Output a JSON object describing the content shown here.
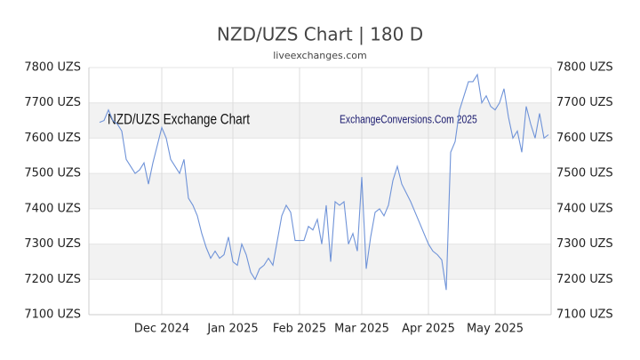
{
  "chart_data": {
    "type": "line",
    "title": "NZD/UZS Chart | 180 D",
    "subtitle": "liveexchanges.com",
    "annotations": [
      "NZD/UZS Exchange Chart",
      "ExchangeConversions.Com 2025"
    ],
    "categories": [
      null,
      null,
      null,
      null,
      null,
      null,
      null,
      null,
      null,
      null,
      null,
      null,
      null,
      null,
      "Dec 2024",
      null,
      null,
      null,
      null,
      null,
      null,
      null,
      null,
      null,
      null,
      null,
      null,
      null,
      null,
      null,
      "Jan 2025",
      null,
      null,
      null,
      null,
      null,
      null,
      null,
      null,
      null,
      null,
      null,
      null,
      null,
      null,
      "Feb 2025",
      null,
      null,
      null,
      null,
      null,
      null,
      null,
      null,
      null,
      null,
      null,
      null,
      null,
      "Mar 2025",
      null,
      null,
      null,
      null,
      null,
      null,
      null,
      null,
      null,
      null,
      null,
      null,
      null,
      null,
      "Apr 2025",
      null,
      null,
      null,
      null,
      null,
      null,
      null,
      null,
      null,
      null,
      null,
      null,
      null,
      null,
      "May 2025",
      null,
      null,
      null,
      null,
      null,
      null,
      null,
      null,
      null,
      null,
      null,
      null
    ],
    "series": [
      {
        "name": "NZD/UZS",
        "color": "#6f93d8",
        "values": [
          7645,
          7650,
          7680,
          7650,
          7640,
          7620,
          7540,
          7520,
          7500,
          7510,
          7530,
          7470,
          7530,
          7580,
          7630,
          7600,
          7540,
          7520,
          7500,
          7540,
          7430,
          7410,
          7380,
          7330,
          7290,
          7260,
          7280,
          7260,
          7270,
          7320,
          7250,
          7240,
          7300,
          7270,
          7220,
          7200,
          7230,
          7240,
          7260,
          7240,
          7310,
          7380,
          7410,
          7390,
          7310,
          7310,
          7310,
          7350,
          7340,
          7370,
          7300,
          7410,
          7250,
          7420,
          7410,
          7420,
          7300,
          7330,
          7280,
          7490,
          7230,
          7320,
          7390,
          7400,
          7380,
          7410,
          7480,
          7520,
          7470,
          7445,
          7420,
          7390,
          7360,
          7330,
          7300,
          7280,
          7270,
          7255,
          7170,
          7560,
          7590,
          7680,
          7720,
          7760,
          7760,
          7780,
          7700,
          7720,
          7690,
          7680,
          7700,
          7740,
          7660,
          7600,
          7620,
          7560,
          7690,
          7640,
          7600,
          7670,
          7600,
          7610
        ]
      }
    ],
    "ylim": [
      7100,
      7800
    ],
    "yticks": [
      {
        "value": 7100,
        "label": "7100 UZS"
      },
      {
        "value": 7200,
        "label": "7200 UZS"
      },
      {
        "value": 7300,
        "label": "7300 UZS"
      },
      {
        "value": 7400,
        "label": "7400 UZS"
      },
      {
        "value": 7500,
        "label": "7500 UZS"
      },
      {
        "value": 7600,
        "label": "7600 UZS"
      },
      {
        "value": 7700,
        "label": "7700 UZS"
      },
      {
        "value": 7800,
        "label": "7800 UZS"
      }
    ],
    "grid": true
  }
}
